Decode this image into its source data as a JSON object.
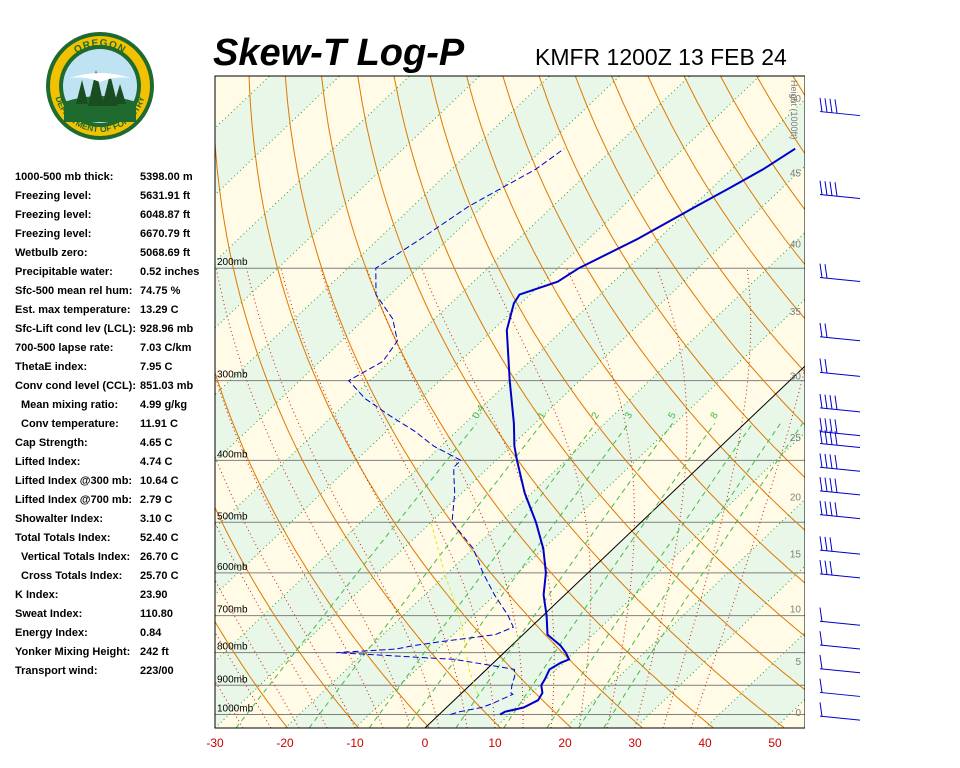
{
  "header": {
    "title": "Skew-T Log-P",
    "station": "KMFR 1200Z 13 FEB 24"
  },
  "logo": {
    "top_text": "OREGON",
    "bottom_text": "DEPARTMENT OF FORESTRY",
    "colors": {
      "ring": "#f2c200",
      "green": "#1f6b2f",
      "sky": "#bfe3f2"
    }
  },
  "indices": [
    {
      "label": "1000-500 mb thick:",
      "value": "5398.00 m",
      "indent": false
    },
    {
      "label": "Freezing level:",
      "value": "5631.91 ft",
      "indent": false
    },
    {
      "label": "Freezing level:",
      "value": "6048.87 ft",
      "indent": false
    },
    {
      "label": "Freezing level:",
      "value": "6670.79 ft",
      "indent": false
    },
    {
      "label": "Wetbulb zero:",
      "value": "5068.69 ft",
      "indent": false
    },
    {
      "label": "Precipitable water:",
      "value": "0.52 inches",
      "indent": false
    },
    {
      "label": "Sfc-500 mean rel hum:",
      "value": "74.75 %",
      "indent": false
    },
    {
      "label": "Est. max temperature:",
      "value": "13.29 C",
      "indent": false
    },
    {
      "label": "Sfc-Lift cond lev (LCL):",
      "value": "928.96 mb",
      "indent": false
    },
    {
      "label": "700-500 lapse rate:",
      "value": "7.03 C/km",
      "indent": false
    },
    {
      "label": "ThetaE index:",
      "value": "7.95 C",
      "indent": false
    },
    {
      "label": "Conv cond level (CCL):",
      "value": "851.03 mb",
      "indent": false
    },
    {
      "label": "Mean mixing ratio:",
      "value": "4.99 g/kg",
      "indent": true
    },
    {
      "label": "Conv temperature:",
      "value": "11.91 C",
      "indent": true
    },
    {
      "label": "Cap Strength:",
      "value": "4.65 C",
      "indent": false
    },
    {
      "label": "Lifted Index:",
      "value": "4.74 C",
      "indent": false
    },
    {
      "label": "Lifted Index @300 mb:",
      "value": "10.64 C",
      "indent": false
    },
    {
      "label": "Lifted Index @700 mb:",
      "value": "2.79 C",
      "indent": false
    },
    {
      "label": "Showalter Index:",
      "value": "3.10 C",
      "indent": false
    },
    {
      "label": "Total Totals Index:",
      "value": "52.40 C",
      "indent": false
    },
    {
      "label": "Vertical Totals Index:",
      "value": "26.70 C",
      "indent": true
    },
    {
      "label": "Cross Totals Index:",
      "value": "25.70 C",
      "indent": true
    },
    {
      "label": "K Index:",
      "value": "23.90",
      "indent": false
    },
    {
      "label": "Sweat Index:",
      "value": "110.80",
      "indent": false
    },
    {
      "label": "Energy Index:",
      "value": "0.84",
      "indent": false
    },
    {
      "label": "Yonker Mixing Height:",
      "value": "242 ft",
      "indent": false
    },
    {
      "label": "Transport wind:",
      "value": "223/00",
      "indent": false
    }
  ],
  "chart_data": {
    "type": "line",
    "title": "Skew-T Log-P",
    "subtitle": "KMFR 1200Z 13 FEB 24",
    "x_axis": {
      "ticks": [
        -30,
        -20,
        -10,
        0,
        10,
        20,
        30,
        40,
        50
      ],
      "unit": "C",
      "range_at_1000mb": [
        -30,
        55
      ]
    },
    "pressure_axis": {
      "ticks_mb": [
        1000,
        900,
        800,
        700,
        600,
        500,
        400,
        300,
        200
      ],
      "range_mb": [
        1050,
        100
      ],
      "scale": "log"
    },
    "height_axis": {
      "label": "Height (1000ft)",
      "ticks": [
        0,
        5,
        10,
        15,
        20,
        25,
        30,
        35,
        40,
        45,
        50
      ]
    },
    "mixing_ratio_labels": [
      "0.4",
      "1",
      "2",
      "3",
      "5",
      "8"
    ],
    "series": [
      {
        "role": "temperature",
        "color": "#0000cc",
        "points": [
          [
            1000,
            8.7
          ],
          [
            990,
            9.0
          ],
          [
            975,
            11.0
          ],
          [
            950,
            12.0
          ],
          [
            925,
            11.5
          ],
          [
            900,
            10.2
          ],
          [
            880,
            9.8
          ],
          [
            850,
            9.0
          ],
          [
            830,
            9.6
          ],
          [
            820,
            10.3
          ],
          [
            800,
            8.8
          ],
          [
            780,
            7.0
          ],
          [
            750,
            3.5
          ],
          [
            700,
            0.5
          ],
          [
            650,
            -3.0
          ],
          [
            600,
            -6.0
          ],
          [
            550,
            -10.0
          ],
          [
            500,
            -15.0
          ],
          [
            450,
            -21.0
          ],
          [
            400,
            -27.0
          ],
          [
            380,
            -29.5
          ],
          [
            350,
            -33.0
          ],
          [
            300,
            -40.0
          ],
          [
            250,
            -48.0
          ],
          [
            227,
            -51.0
          ],
          [
            220,
            -51.5
          ],
          [
            210,
            -48.0
          ],
          [
            200,
            -47.0
          ],
          [
            180,
            -43.0
          ],
          [
            160,
            -39.5
          ],
          [
            150,
            -37.5
          ],
          [
            140,
            -35.5
          ],
          [
            130,
            -34.0
          ]
        ]
      },
      {
        "role": "dewpoint",
        "color": "#0000cc",
        "points": [
          [
            1000,
            1.6
          ],
          [
            990,
            2.5
          ],
          [
            975,
            5.0
          ],
          [
            960,
            6.0
          ],
          [
            940,
            7.0
          ],
          [
            930,
            7.5
          ],
          [
            925,
            7.0
          ],
          [
            900,
            6.0
          ],
          [
            870,
            5.0
          ],
          [
            850,
            4.0
          ],
          [
            820,
            -6.0
          ],
          [
            800,
            -24.0
          ],
          [
            790,
            -16.0
          ],
          [
            780,
            -14.0
          ],
          [
            770,
            -11.0
          ],
          [
            750,
            -4.0
          ],
          [
            730,
            -2.5
          ],
          [
            700,
            -5.0
          ],
          [
            650,
            -10.0
          ],
          [
            600,
            -15.0
          ],
          [
            550,
            -20.0
          ],
          [
            500,
            -27.0
          ],
          [
            450,
            -31.0
          ],
          [
            420,
            -34.0
          ],
          [
            410,
            -35.0
          ],
          [
            400,
            -35.0
          ],
          [
            380,
            -41.0
          ],
          [
            360,
            -46.0
          ],
          [
            340,
            -52.0
          ],
          [
            320,
            -58.0
          ],
          [
            300,
            -63.0
          ],
          [
            280,
            -61.0
          ],
          [
            260,
            -62.0
          ],
          [
            240,
            -66.0
          ],
          [
            220,
            -72.0
          ],
          [
            200,
            -76.0
          ],
          [
            180,
            -74.0
          ],
          [
            160,
            -72.0
          ],
          [
            140,
            -68.0
          ],
          [
            130,
            -67.0
          ]
        ]
      },
      {
        "role": "parcel",
        "color": "#e6e600",
        "points": [
          [
            930,
            2.5
          ],
          [
            850,
            -2.5
          ],
          [
            750,
            -8.5
          ],
          [
            700,
            -12.0
          ],
          [
            600,
            -20.5
          ],
          [
            500,
            -30.0
          ]
        ]
      }
    ],
    "wind_barbs": [
      {
        "height_kft": 1,
        "barbs": 1
      },
      {
        "height_kft": 3,
        "barbs": 1
      },
      {
        "height_kft": 5,
        "barbs": 1
      },
      {
        "height_kft": 7,
        "barbs": 1
      },
      {
        "height_kft": 9,
        "barbs": 1
      },
      {
        "height_kft": 13,
        "barbs": 3
      },
      {
        "height_kft": 15,
        "barbs": 3
      },
      {
        "height_kft": 18,
        "barbs": 4
      },
      {
        "height_kft": 20,
        "barbs": 4
      },
      {
        "height_kft": 22,
        "barbs": 4
      },
      {
        "height_kft": 24,
        "barbs": 4
      },
      {
        "height_kft": 25,
        "barbs": 4
      },
      {
        "height_kft": 27,
        "barbs": 4
      },
      {
        "height_kft": 30,
        "barbs": 2
      },
      {
        "height_kft": 33,
        "barbs": 2
      },
      {
        "height_kft": 38,
        "barbs": 2
      },
      {
        "height_kft": 45,
        "barbs": 4
      },
      {
        "height_kft": 52,
        "barbs": 4
      }
    ]
  }
}
